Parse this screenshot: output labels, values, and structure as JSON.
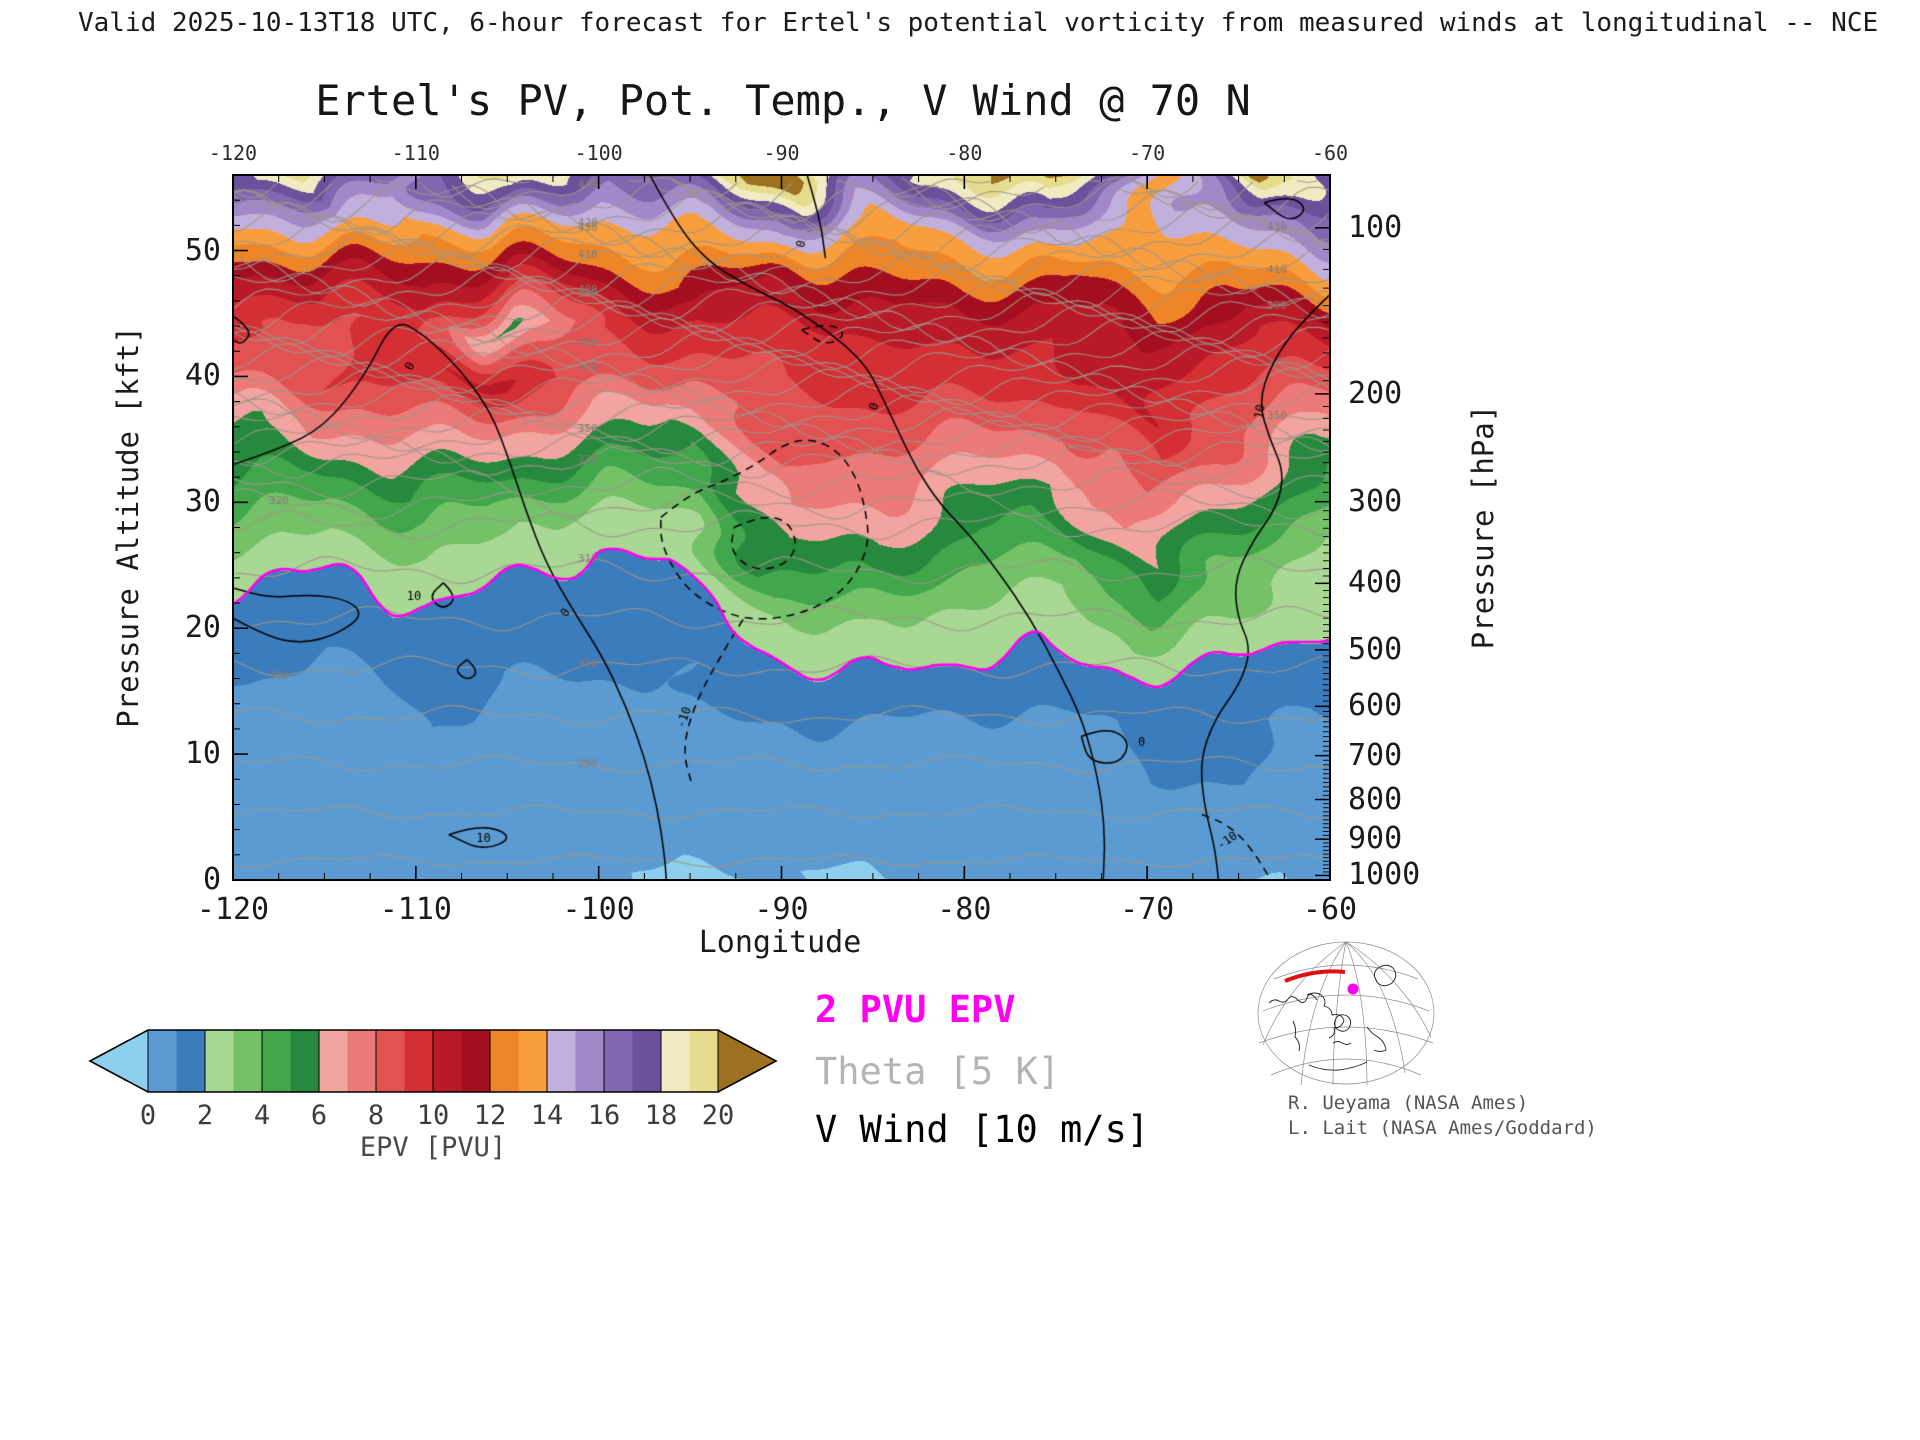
{
  "header": {
    "valid_line": "Valid 2025-10-13T18 UTC, 6-hour forecast for Ertel's potential vorticity from measured winds at longitudinal -- NCE"
  },
  "title": "Ertel's PV, Pot. Temp., V Wind @ 70 N",
  "axes": {
    "x": {
      "label": "Longitude",
      "min": -120,
      "max": -60,
      "major_ticks": [
        -120,
        -110,
        -100,
        -90,
        -80,
        -70,
        -60
      ],
      "minor_step": 2.5
    },
    "y_left": {
      "label": "Pressure Altitude [kft]",
      "min": 0,
      "max": 56,
      "major_ticks": [
        0,
        10,
        20,
        30,
        40,
        50
      ],
      "minor_step": 2
    },
    "y_right": {
      "label": "Pressure [hPa]",
      "major_ticks": [
        100,
        200,
        300,
        400,
        500,
        600,
        700,
        800,
        900,
        1000
      ],
      "minor_step_hPa": 10
    }
  },
  "colorbar": {
    "label": "EPV [PVU]",
    "ticks": [
      0,
      2,
      4,
      6,
      8,
      10,
      12,
      14,
      16,
      18,
      20
    ],
    "cell_colors": [
      "#5b9bd1",
      "#3b7cbc",
      "#a8d893",
      "#74c167",
      "#41a64c",
      "#27893d",
      "#f2a4a0",
      "#ec7a78",
      "#e25252",
      "#d32f35",
      "#ba1a28",
      "#a30f20",
      "#ee8526",
      "#f89e3e",
      "#c2b0dc",
      "#a288c8",
      "#8266af",
      "#6c509b",
      "#f1ebc2",
      "#e6dc8d"
    ],
    "under_color": "#8dd0ee",
    "over_color": "#9d7120"
  },
  "legend": [
    {
      "text": "2 PVU EPV",
      "color": "#ff00f0"
    },
    {
      "text": "Theta [5 K]",
      "color": "#b4b4b4"
    },
    {
      "text": "V Wind [10 m/s]",
      "color": "#000000"
    }
  ],
  "credits": [
    "R. Ueyama (NASA Ames)",
    "L. Lait (NASA Ames/Goddard)"
  ],
  "chart_data": {
    "type": "heatmap",
    "title": "Ertel's PV, Pot. Temp., V Wind @ 70 N",
    "xlabel": "Longitude",
    "ylabel_left": "Pressure Altitude [kft]",
    "ylabel_right": "Pressure [hPa]",
    "epv_units": "PVU",
    "x_lon": [
      -120,
      -115,
      -110,
      -105,
      -100,
      -95,
      -90,
      -85,
      -80,
      -75,
      -70,
      -65,
      -60
    ],
    "y_kft": [
      0,
      4,
      8,
      12,
      16,
      20,
      24,
      28,
      32,
      36,
      40,
      44,
      48,
      52,
      56
    ],
    "epv_pvu_grid": [
      [
        0.3,
        0.3,
        0.5,
        0.4,
        0.3,
        -0.6,
        0.3,
        -0.4,
        0.3,
        0.4,
        0.5,
        -0.3,
        0.3
      ],
      [
        0.5,
        0.4,
        0.6,
        0.5,
        0.5,
        0.4,
        0.6,
        0.5,
        0.4,
        0.5,
        0.8,
        0.8,
        0.5
      ],
      [
        0.6,
        0.5,
        0.8,
        0.6,
        0.7,
        0.6,
        0.8,
        0.7,
        0.5,
        0.6,
        1.0,
        1.0,
        0.6
      ],
      [
        0.8,
        0.6,
        1.0,
        0.8,
        0.8,
        0.8,
        1.0,
        0.9,
        0.7,
        0.8,
        1.2,
        1.2,
        0.8
      ],
      [
        1.0,
        0.8,
        1.2,
        1.0,
        1.0,
        1.0,
        1.7,
        1.9,
        1.6,
        1.5,
        1.9,
        1.6,
        1.2
      ],
      [
        1.4,
        1.2,
        1.7,
        1.4,
        1.2,
        1.5,
        2.8,
        3.2,
        2.5,
        2.3,
        3.6,
        2.7,
        1.8
      ],
      [
        2.2,
        1.9,
        2.4,
        2.0,
        1.6,
        1.9,
        4.6,
        5.0,
        3.6,
        3.1,
        5.6,
        3.6,
        2.3
      ],
      [
        3.6,
        3.1,
        3.9,
        3.3,
        2.3,
        2.5,
        6.6,
        6.6,
        5.1,
        4.6,
        7.1,
        5.1,
        3.1
      ],
      [
        5.1,
        4.6,
        5.6,
        5.1,
        4.1,
        4.6,
        8.1,
        7.6,
        6.6,
        6.1,
        8.6,
        6.6,
        4.6
      ],
      [
        5.6,
        7.1,
        7.6,
        7.1,
        6.6,
        5.1,
        8.6,
        8.6,
        8.1,
        8.1,
        10.1,
        8.1,
        6.6
      ],
      [
        8.1,
        9.1,
        9.6,
        10.6,
        8.6,
        8.1,
        9.1,
        9.6,
        9.6,
        9.6,
        10.6,
        9.1,
        8.6
      ],
      [
        9.6,
        8.1,
        9.6,
        5.6,
        9.1,
        10.1,
        9.6,
        10.1,
        10.6,
        10.1,
        11.6,
        10.1,
        10.6
      ],
      [
        11.1,
        10.6,
        11.6,
        10.1,
        11.6,
        12.6,
        11.1,
        12.1,
        12.6,
        12.1,
        13.1,
        12.6,
        13.6
      ],
      [
        13.6,
        15.1,
        13.1,
        14.6,
        13.6,
        14.1,
        15.6,
        13.6,
        14.6,
        16.6,
        13.4,
        15.1,
        16.1
      ],
      [
        17.1,
        19.6,
        15.6,
        21.1,
        16.1,
        18.6,
        21.6,
        16.6,
        19.1,
        21.6,
        13.2,
        20.6,
        17.6
      ]
    ],
    "pv_tropopause_level_pvu": 2,
    "theta_contour_interval_K": 5,
    "theta_level_range_K": [
      280,
      445
    ],
    "theta_labels": [
      {
        "lev": 290,
        "lon": -100.6
      },
      {
        "lev": 300,
        "lon": -100.6
      },
      {
        "lev": 310,
        "lon": -100.6
      },
      {
        "lev": 330,
        "lon": -100.6
      },
      {
        "lev": 350,
        "lon": -100.6
      },
      {
        "lev": 370,
        "lon": -100.6
      },
      {
        "lev": 380,
        "lon": -100.6
      },
      {
        "lev": 390,
        "lon": -100.6
      },
      {
        "lev": 400,
        "lon": -100.6
      },
      {
        "lev": 410,
        "lon": -100.6
      },
      {
        "lev": 420,
        "lon": -100.6
      },
      {
        "lev": 430,
        "lon": -100.6
      },
      {
        "lev": 440,
        "lon": -100.6
      },
      {
        "lev": 350,
        "lon": -62.9
      },
      {
        "lev": 370,
        "lon": -62.9
      },
      {
        "lev": 390,
        "lon": -62.9
      },
      {
        "lev": 410,
        "lon": -62.9
      },
      {
        "lev": 430,
        "lon": -62.9
      },
      {
        "lev": 300,
        "lon": -117.5
      },
      {
        "lev": 320,
        "lon": -117.5
      }
    ],
    "wind_contour_interval_ms": 10,
    "wind_contours": [
      {
        "level": "0",
        "style": "solid",
        "pts": [
          [
            -120,
            33
          ],
          [
            -117.5,
            34.2
          ],
          [
            -115,
            36
          ],
          [
            -112.8,
            40
          ],
          [
            -111.2,
            44.6
          ],
          [
            -109.6,
            43.4
          ],
          [
            -107.6,
            40.6
          ],
          [
            -105.9,
            37.2
          ],
          [
            -104.9,
            33.4
          ],
          [
            -104,
            29.4
          ],
          [
            -102.9,
            25.2
          ],
          [
            -101.4,
            21.4
          ],
          [
            -99.8,
            17.8
          ],
          [
            -98.5,
            13.8
          ],
          [
            -97.5,
            9.8
          ],
          [
            -96.8,
            5.8
          ],
          [
            -96.4,
            2
          ],
          [
            -96.3,
            0
          ]
        ]
      },
      {
        "level": "0",
        "style": "solid",
        "pts": [
          [
            -120,
            20.8
          ],
          [
            -118,
            19.2
          ],
          [
            -116,
            18.8
          ],
          [
            -114.2,
            19.6
          ],
          [
            -112.9,
            21
          ],
          [
            -113.6,
            22.2
          ],
          [
            -115.6,
            22.7
          ],
          [
            -118,
            22.4
          ],
          [
            -120,
            23.2
          ]
        ]
      },
      {
        "level": "10",
        "style": "solid",
        "pts": [
          [
            -108.5,
            23.6
          ],
          [
            -107.7,
            22.5
          ],
          [
            -108.5,
            21.4
          ],
          [
            -109.3,
            22.5
          ],
          [
            -108.5,
            23.6
          ]
        ]
      },
      {
        "level": "10",
        "style": "solid",
        "pts": [
          [
            -107.2,
            17.5
          ],
          [
            -106.5,
            16.6
          ],
          [
            -107.2,
            15.8
          ],
          [
            -107.9,
            16.7
          ],
          [
            -107.2,
            17.5
          ]
        ]
      },
      {
        "level": "10",
        "style": "solid",
        "pts": [
          [
            -108.2,
            3.6
          ],
          [
            -106.4,
            4.5
          ],
          [
            -104.6,
            3.4
          ],
          [
            -106.3,
            2.3
          ],
          [
            -108.2,
            3.6
          ]
        ]
      },
      {
        "level": "0",
        "style": "solid",
        "pts": [
          [
            -97.2,
            56
          ],
          [
            -95.8,
            52.2
          ],
          [
            -94.1,
            49.2
          ],
          [
            -91.9,
            47.2
          ],
          [
            -89.7,
            45.7
          ],
          [
            -88.1,
            44.2
          ],
          [
            -86.6,
            42.6
          ],
          [
            -85.3,
            40.7
          ],
          [
            -84.5,
            38.4
          ],
          [
            -83.6,
            35.6
          ],
          [
            -82.6,
            32.6
          ],
          [
            -81.3,
            29.8
          ],
          [
            -79.7,
            27.4
          ],
          [
            -78.1,
            24.4
          ],
          [
            -76.4,
            20.8
          ],
          [
            -74.9,
            16.8
          ],
          [
            -73.5,
            12.6
          ],
          [
            -72.7,
            8.2
          ],
          [
            -72.3,
            4
          ],
          [
            -72.4,
            0
          ]
        ]
      },
      {
        "level": "0",
        "style": "solid",
        "pts": [
          [
            -88.6,
            56
          ],
          [
            -87.9,
            52.6
          ],
          [
            -87.6,
            49.4
          ]
        ]
      },
      {
        "level": "0",
        "style": "solid",
        "pts": [
          [
            -73.6,
            11.4
          ],
          [
            -72.2,
            12.2
          ],
          [
            -70.9,
            11
          ],
          [
            -71.5,
            9.2
          ],
          [
            -73.2,
            9.4
          ],
          [
            -73.6,
            11.4
          ]
        ]
      },
      {
        "level": "10",
        "style": "solid",
        "pts": [
          [
            -60,
            46.5
          ],
          [
            -61.8,
            44
          ],
          [
            -63.2,
            41
          ],
          [
            -63.9,
            38
          ],
          [
            -63.3,
            35
          ],
          [
            -62.5,
            32.4
          ],
          [
            -62.9,
            29.6
          ],
          [
            -64.2,
            27
          ],
          [
            -65.2,
            24
          ],
          [
            -65.1,
            21
          ],
          [
            -64.3,
            18.4
          ],
          [
            -64.9,
            15.6
          ],
          [
            -66.3,
            12.8
          ],
          [
            -67.1,
            9.6
          ],
          [
            -66.9,
            6
          ],
          [
            -66.3,
            2.6
          ],
          [
            -66.1,
            0
          ]
        ]
      },
      {
        "level": "10",
        "style": "solid",
        "pts": [
          [
            -63.6,
            53.8
          ],
          [
            -62.2,
            54.4
          ],
          [
            -61.2,
            53.3
          ],
          [
            -62.2,
            52.2
          ],
          [
            -63.6,
            53.8
          ]
        ]
      },
      {
        "level": "-10",
        "style": "dashed",
        "pts": [
          [
            -96.6,
            28.8
          ],
          [
            -95.1,
            30.6
          ],
          [
            -93.1,
            31.7
          ],
          [
            -91.4,
            33
          ],
          [
            -89.9,
            34.6
          ],
          [
            -88.4,
            35.1
          ],
          [
            -86.9,
            34.1
          ],
          [
            -85.9,
            32
          ],
          [
            -85.4,
            29.4
          ],
          [
            -85.2,
            26.8
          ],
          [
            -85.9,
            24.3
          ],
          [
            -87.1,
            22.4
          ],
          [
            -89.2,
            21
          ],
          [
            -91.7,
            20.6
          ],
          [
            -93.7,
            21.6
          ],
          [
            -95.2,
            23.2
          ],
          [
            -96.1,
            25.2
          ],
          [
            -96.6,
            27
          ],
          [
            -96.6,
            28.8
          ]
        ]
      },
      {
        "level": "-10",
        "style": "dashed",
        "pts": [
          [
            -92.6,
            28
          ],
          [
            -91.1,
            29
          ],
          [
            -89.6,
            28.5
          ],
          [
            -89.1,
            26.5
          ],
          [
            -89.9,
            24.9
          ],
          [
            -91.6,
            24.6
          ],
          [
            -92.8,
            26.1
          ],
          [
            -92.6,
            28
          ]
        ]
      },
      {
        "level": "-10",
        "style": "dashed",
        "pts": [
          [
            -92.1,
            20.7
          ],
          [
            -93.6,
            17.2
          ],
          [
            -94.9,
            13.4
          ],
          [
            -95.4,
            10.2
          ],
          [
            -94.9,
            7.6
          ]
        ]
      },
      {
        "level": "-10",
        "style": "dashed",
        "pts": [
          [
            -88.9,
            43.7
          ],
          [
            -87.4,
            44.3
          ],
          [
            -86.4,
            43.3
          ],
          [
            -87.6,
            42.4
          ],
          [
            -88.9,
            43.7
          ]
        ]
      },
      {
        "level": "-10",
        "style": "dashed",
        "pts": [
          [
            -63.4,
            0.4
          ],
          [
            -64.3,
            2.6
          ],
          [
            -65.6,
            4.4
          ],
          [
            -67,
            5.2
          ]
        ]
      },
      {
        "level": "0",
        "style": "solid",
        "pts": [
          [
            -120,
            44.8
          ],
          [
            -118.9,
            43.7
          ],
          [
            -119.5,
            42.5
          ],
          [
            -120,
            42.9
          ]
        ]
      }
    ],
    "wind_labels": [
      {
        "text": "0",
        "lon": -110.3,
        "kft": 40.8,
        "rot": -65
      },
      {
        "text": "0",
        "lon": -101.8,
        "kft": 21.2,
        "rot": -55
      },
      {
        "text": "0",
        "lon": -84.9,
        "kft": 37.6,
        "rot": -72
      },
      {
        "text": "0",
        "lon": -88.9,
        "kft": 50.5,
        "rot": -75
      },
      {
        "text": "0",
        "lon": -70.3,
        "kft": 10.9,
        "rot": 0
      },
      {
        "text": "10",
        "lon": -110.1,
        "kft": 22.5,
        "rot": 0
      },
      {
        "text": "10",
        "lon": -106.3,
        "kft": 3.3,
        "rot": 0
      },
      {
        "text": "10",
        "lon": -63.8,
        "kft": 37.2,
        "rot": -80
      },
      {
        "text": "-10",
        "lon": -95.3,
        "kft": 12.9,
        "rot": -70
      },
      {
        "text": "-10",
        "lon": -65.6,
        "kft": 3.1,
        "rot": -35
      }
    ]
  }
}
